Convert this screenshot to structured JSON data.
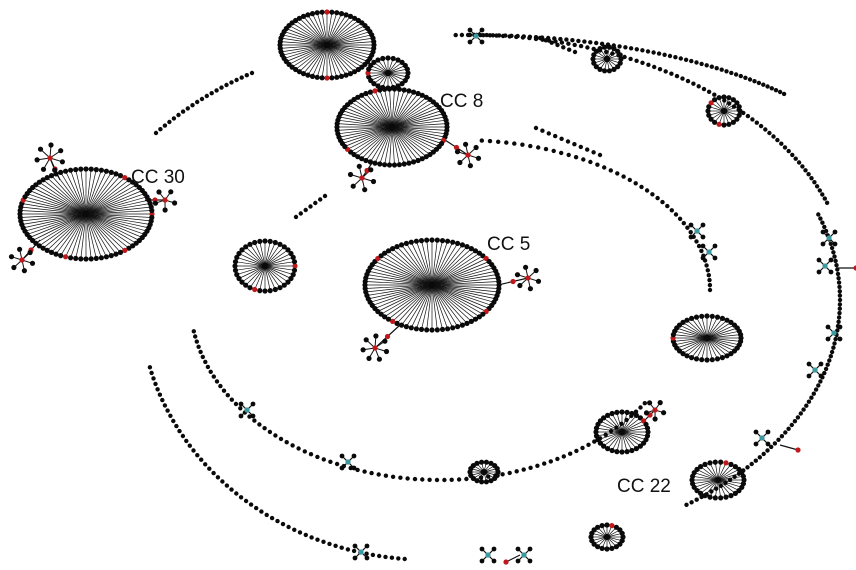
{
  "diagram": {
    "labels": {
      "cc30": "CC 30",
      "cc8": "CC 8",
      "cc5": "CC 5",
      "cc22": "CC 22"
    },
    "colors": {
      "node": "#0a0a0a",
      "edge": "#111111",
      "red_node": "#c0191c",
      "center_node": "#3a9aa0",
      "background": "#ffffff"
    }
  }
}
